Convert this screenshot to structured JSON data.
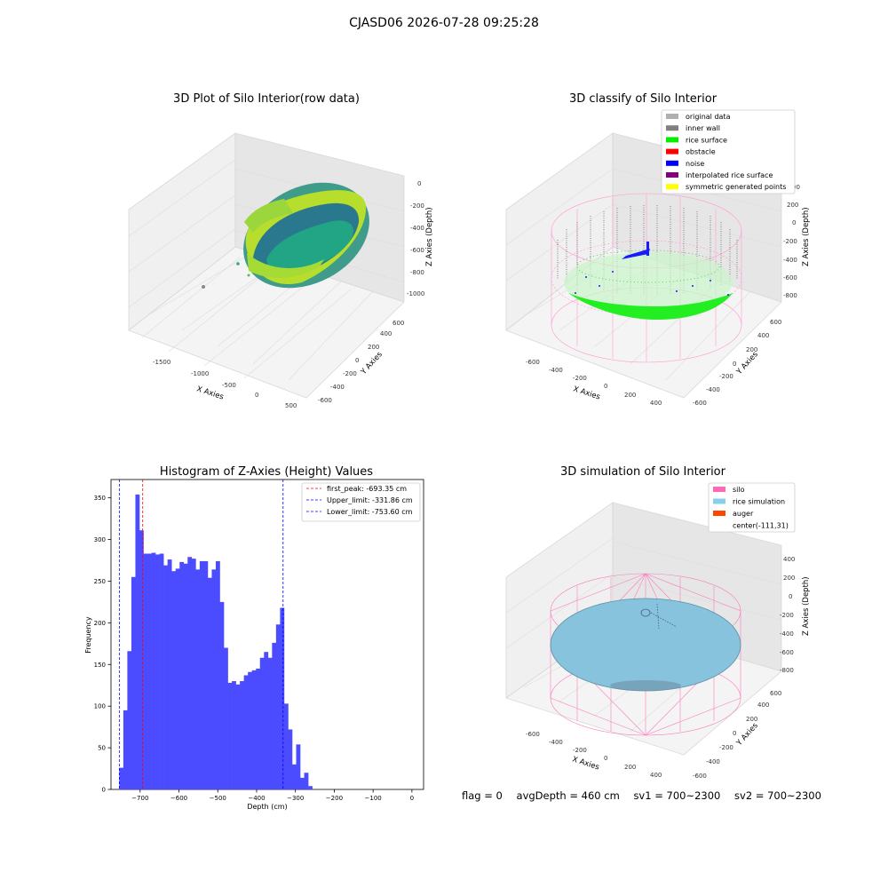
{
  "title": "CJASD06 2026-07-28 09:25:28",
  "panels": {
    "raw": {
      "title": "3D Plot of Silo Interior(row data)",
      "xlabel": "X Axies",
      "ylabel": "Y Axies",
      "zlabel": "Z Axies (Depth)",
      "xticks": [
        "-1500",
        "-1000",
        "-500",
        "0",
        "500"
      ],
      "yticks": [
        "-600",
        "-400",
        "-200",
        "0",
        "200",
        "400",
        "600"
      ],
      "zticks": [
        "0",
        "-200",
        "-400",
        "-600",
        "-800",
        "-1000"
      ]
    },
    "classify": {
      "title": "3D classify of Silo Interior",
      "xlabel": "X Axies",
      "ylabel": "Y Axies",
      "zlabel": "Z Axies (Depth)",
      "xticks": [
        "-600",
        "-400",
        "-200",
        "0",
        "200",
        "400"
      ],
      "yticks": [
        "-600",
        "-400",
        "-200",
        "0",
        "200",
        "400",
        "600"
      ],
      "zticks": [
        "200",
        "0",
        "-200",
        "-400",
        "-600",
        "-800"
      ],
      "zticks_top_partial": "00",
      "legend": [
        {
          "label": "original data",
          "color": "#b0b0b0"
        },
        {
          "label": "inner wall",
          "color": "#808080"
        },
        {
          "label": "rice surface",
          "color": "#00ee00"
        },
        {
          "label": "obstacle",
          "color": "#ff0000"
        },
        {
          "label": "noise",
          "color": "#0000ff"
        },
        {
          "label": "interpolated rice surface",
          "color": "#800080"
        },
        {
          "label": "symmetric generated points",
          "color": "#ffff00"
        }
      ]
    },
    "simulation": {
      "title": "3D simulation of Silo Interior",
      "xlabel": "X Axies",
      "ylabel": "Y Axies",
      "zlabel": "Z Axies (Depth)",
      "xticks": [
        "-600",
        "-400",
        "-200",
        "0",
        "200",
        "400"
      ],
      "yticks": [
        "-600",
        "-400",
        "-200",
        "0",
        "200",
        "400",
        "600"
      ],
      "zticks": [
        "400",
        "200",
        "0",
        "-200",
        "-400",
        "-600",
        "-800"
      ],
      "legend": [
        {
          "label": "silo",
          "color": "#ff69b4"
        },
        {
          "label": "rice simulation",
          "color": "#87ceeb"
        },
        {
          "label": "auger",
          "color": "#ff4500"
        },
        {
          "label": "center(-111,31)",
          "color": ""
        }
      ]
    }
  },
  "chart_data": {
    "type": "bar",
    "title": "Histogram of Z-Axies (Height) Values",
    "xlabel": "Depth (cm)",
    "ylabel": "Frequency",
    "xlim": [
      -775,
      30
    ],
    "ylim": [
      0,
      372
    ],
    "xticks": [
      -700,
      -600,
      -500,
      -400,
      -300,
      -200,
      -100,
      0
    ],
    "xtick_labels": [
      "−700",
      "−600",
      "−500",
      "−400",
      "−300",
      "−200",
      "−100",
      "0"
    ],
    "yticks": [
      0,
      50,
      100,
      150,
      200,
      250,
      300,
      350
    ],
    "bin_width": 10.35,
    "bin_start": -753.6,
    "color": "#4b4bff",
    "values": [
      26,
      95,
      166,
      255,
      354,
      311,
      283,
      283,
      284,
      282,
      283,
      269,
      276,
      262,
      265,
      273,
      271,
      279,
      277,
      264,
      274,
      274,
      254,
      264,
      274,
      225,
      170,
      128,
      130,
      126,
      130,
      137,
      141,
      143,
      145,
      158,
      165,
      158,
      176,
      198,
      218,
      103,
      72,
      30,
      54,
      14,
      20,
      4
    ],
    "vlines": [
      {
        "label": "first_peak: -693.35 cm",
        "value": -693.35,
        "color": "#ff0000"
      },
      {
        "label": "Upper_limit: -331.86 cm",
        "value": -331.86,
        "color": "#0000ff"
      },
      {
        "label": "Lower_limit: -753.60 cm",
        "value": -753.6,
        "color": "#0000ff"
      }
    ],
    "legend_position": "upper right"
  },
  "status": {
    "flag": "flag = 0",
    "avg": "avgDepth = 460 cm",
    "sv1": "sv1 = 700~2300",
    "sv2": "sv2 = 700~2300"
  }
}
